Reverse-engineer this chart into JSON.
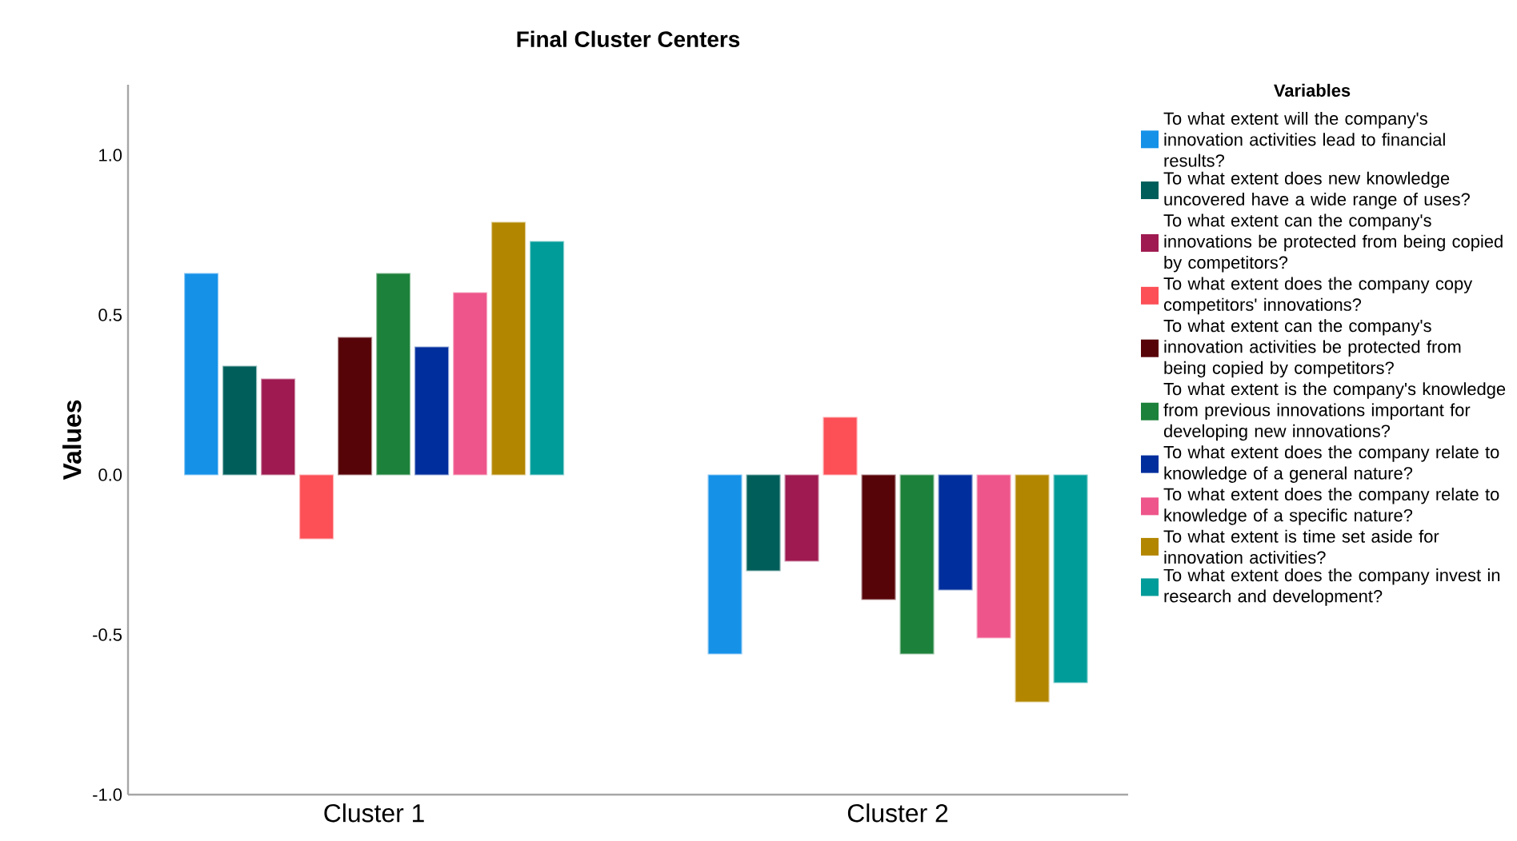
{
  "chart_data": {
    "type": "bar",
    "title": "Final Cluster Centers",
    "ylabel": "Values",
    "legend_title": "Variables",
    "legend": "right",
    "categories": [
      "Cluster 1",
      "Cluster 2"
    ],
    "ylim": [
      -1.0,
      1.22
    ],
    "yticks": [
      {
        "value": -1.0,
        "label": "-1.0"
      },
      {
        "value": -0.5,
        "label": "-0.5"
      },
      {
        "value": 0.0,
        "label": "0.0"
      },
      {
        "value": 0.5,
        "label": "0.5"
      },
      {
        "value": 1.0,
        "label": "1.0"
      }
    ],
    "series": [
      {
        "name": "To what extent will the company's innovation activities lead to financial results?",
        "color": "#1591e8",
        "values": [
          0.63,
          -0.56
        ]
      },
      {
        "name": "To what extent does new knowledge uncovered have a wide range of uses?",
        "color": "#005e5a",
        "values": [
          0.34,
          -0.3
        ]
      },
      {
        "name": "To what extent can the company's innovations be protected from being copied by competitors?",
        "color": "#9e1a50",
        "values": [
          0.3,
          -0.27
        ]
      },
      {
        "name": "To what extent does the company copy competitors' innovations?",
        "color": "#fc4f56",
        "values": [
          -0.2,
          0.18
        ]
      },
      {
        "name": "To what extent can the company's innovation activities be protected from being copied by competitors?",
        "color": "#570409",
        "values": [
          0.43,
          -0.39
        ]
      },
      {
        "name": "To what extent is the company's knowledge from previous innovations important for developing new innovations?",
        "color": "#1c813a",
        "values": [
          0.63,
          -0.56
        ]
      },
      {
        "name": "To what extent does the company relate to knowledge of a general nature?",
        "color": "#002e9c",
        "values": [
          0.4,
          -0.36
        ]
      },
      {
        "name": "To what extent does the company relate to knowledge of a specific nature?",
        "color": "#ee558a",
        "values": [
          0.57,
          -0.51
        ]
      },
      {
        "name": "To what extent is time set aside for innovation activities?",
        "color": "#b38600",
        "values": [
          0.79,
          -0.71
        ]
      },
      {
        "name": "To what extent does the company invest in research and development?",
        "color": "#009c99",
        "values": [
          0.73,
          -0.65
        ]
      }
    ]
  }
}
